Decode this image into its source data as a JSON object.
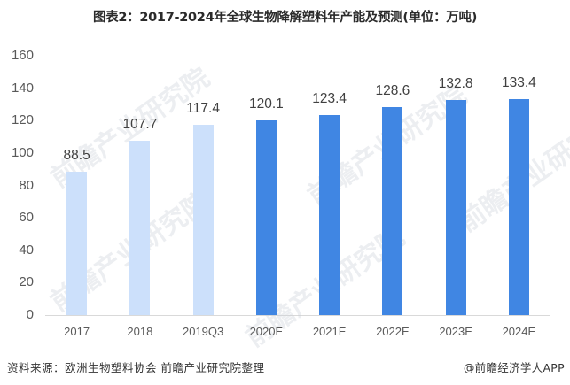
{
  "title": "图表2：2017-2024年全球生物降解塑料年产能及预测(单位：万吨)",
  "source": "资料来源：欧洲生物塑料协会 前瞻产业研究院整理",
  "credit": "@前瞻经济学人APP",
  "watermark": "前瞻产业研究院",
  "colors": {
    "actual": "#cce0fb",
    "forecast": "#4086e3",
    "axis": "#d9d9d9"
  },
  "chart_data": {
    "type": "bar",
    "title": "图表2：2017-2024年全球生物降解塑料年产能及预测(单位：万吨)",
    "xlabel": "",
    "ylabel": "万吨",
    "ylim": [
      0,
      160
    ],
    "yticks": [
      0,
      20,
      40,
      60,
      80,
      100,
      120,
      140,
      160
    ],
    "grid": false,
    "legend": null,
    "categories": [
      "2017",
      "2018",
      "2019Q3",
      "2020E",
      "2021E",
      "2022E",
      "2023E",
      "2024E"
    ],
    "values": [
      88.5,
      107.7,
      117.4,
      120.1,
      123.4,
      128.6,
      132.8,
      133.4
    ],
    "value_labels": [
      "88.5",
      "107.7",
      "117.4",
      "120.1",
      "123.4",
      "128.6",
      "132.8",
      "133.4"
    ],
    "forecast": [
      false,
      false,
      false,
      true,
      true,
      true,
      true,
      true
    ]
  },
  "yticks_text": [
    "160",
    "140",
    "120",
    "100",
    "80",
    "60",
    "40",
    "20",
    "0"
  ]
}
